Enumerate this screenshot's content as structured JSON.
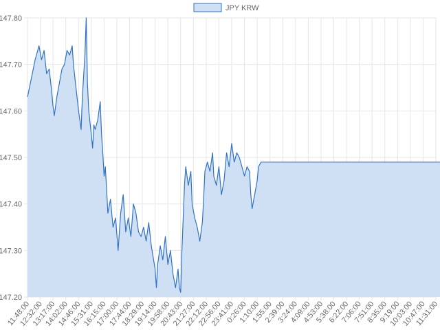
{
  "chart_data": {
    "type": "area",
    "title": "",
    "xlabel": "",
    "ylabel": "",
    "legend_position": "top-center",
    "grid": true,
    "ylim": [
      147.2,
      147.8
    ],
    "y_ticks": [
      "147.20",
      "147.30",
      "147.40",
      "147.50",
      "147.60",
      "147.70",
      "147.80"
    ],
    "x_ticks": [
      "11:48:00",
      "12:32:00",
      "13:17:00",
      "14:02:00",
      "14:46:00",
      "15:31:00",
      "16:15:00",
      "17:00:00",
      "17:44:00",
      "18:29:00",
      "19:14:00",
      "19:58:00",
      "20:43:00",
      "21:27:00",
      "22:12:00",
      "22:56:00",
      "23:41:00",
      "0:26:00",
      "1:10:00",
      "1:55:00",
      "2:39:00",
      "3:24:00",
      "4:09:00",
      "4:53:00",
      "5:38:00",
      "6:22:00",
      "7:06:00",
      "7:51:00",
      "8:35:00",
      "9:19:00",
      "10:03:00",
      "10:47:00",
      "11:31:00"
    ],
    "series": [
      {
        "name": "JPY KRW",
        "color": "#2f72c4",
        "fill": "#cfe0f5",
        "points": [
          [
            0,
            147.63
          ],
          [
            0.3,
            147.67
          ],
          [
            0.6,
            147.71
          ],
          [
            0.9,
            147.74
          ],
          [
            1.1,
            147.71
          ],
          [
            1.3,
            147.73
          ],
          [
            1.5,
            147.68
          ],
          [
            1.7,
            147.69
          ],
          [
            1.9,
            147.64
          ],
          [
            2.0,
            147.61
          ],
          [
            2.1,
            147.59
          ],
          [
            2.3,
            147.63
          ],
          [
            2.5,
            147.66
          ],
          [
            2.7,
            147.69
          ],
          [
            2.9,
            147.7
          ],
          [
            3.1,
            147.73
          ],
          [
            3.3,
            147.72
          ],
          [
            3.5,
            147.74
          ],
          [
            3.6,
            147.7
          ],
          [
            3.8,
            147.65
          ],
          [
            4.0,
            147.6
          ],
          [
            4.2,
            147.56
          ],
          [
            4.3,
            147.63
          ],
          [
            4.5,
            147.72
          ],
          [
            4.6,
            147.8
          ],
          [
            4.7,
            147.66
          ],
          [
            4.8,
            147.6
          ],
          [
            5.0,
            147.55
          ],
          [
            5.1,
            147.52
          ],
          [
            5.2,
            147.57
          ],
          [
            5.3,
            147.56
          ],
          [
            5.5,
            147.58
          ],
          [
            5.7,
            147.62
          ],
          [
            5.8,
            147.55
          ],
          [
            5.9,
            147.51
          ],
          [
            6.0,
            147.46
          ],
          [
            6.1,
            147.48
          ],
          [
            6.2,
            147.43
          ],
          [
            6.3,
            147.38
          ],
          [
            6.5,
            147.41
          ],
          [
            6.7,
            147.35
          ],
          [
            6.9,
            147.37
          ],
          [
            7.1,
            147.3
          ],
          [
            7.3,
            147.38
          ],
          [
            7.5,
            147.42
          ],
          [
            7.7,
            147.34
          ],
          [
            7.9,
            147.37
          ],
          [
            8.1,
            147.33
          ],
          [
            8.3,
            147.4
          ],
          [
            8.5,
            147.38
          ],
          [
            8.7,
            147.34
          ],
          [
            8.9,
            147.33
          ],
          [
            9.1,
            147.35
          ],
          [
            9.3,
            147.32
          ],
          [
            9.5,
            147.36
          ],
          [
            9.7,
            147.31
          ],
          [
            10.0,
            147.26
          ],
          [
            10.1,
            147.22
          ],
          [
            10.2,
            147.27
          ],
          [
            10.4,
            147.31
          ],
          [
            10.6,
            147.28
          ],
          [
            10.8,
            147.33
          ],
          [
            11.0,
            147.27
          ],
          [
            11.2,
            147.3
          ],
          [
            11.4,
            147.25
          ],
          [
            11.6,
            147.22
          ],
          [
            11.8,
            147.26
          ],
          [
            11.9,
            147.22
          ],
          [
            12.0,
            147.21
          ],
          [
            12.1,
            147.3
          ],
          [
            12.2,
            147.37
          ],
          [
            12.3,
            147.44
          ],
          [
            12.4,
            147.48
          ],
          [
            12.6,
            147.44
          ],
          [
            12.8,
            147.47
          ],
          [
            12.9,
            147.4
          ],
          [
            13.1,
            147.37
          ],
          [
            13.3,
            147.35
          ],
          [
            13.5,
            147.32
          ],
          [
            13.7,
            147.36
          ],
          [
            13.8,
            147.41
          ],
          [
            13.9,
            147.47
          ],
          [
            14.1,
            147.49
          ],
          [
            14.3,
            147.47
          ],
          [
            14.5,
            147.51
          ],
          [
            14.6,
            147.46
          ],
          [
            14.8,
            147.44
          ],
          [
            15.0,
            147.48
          ],
          [
            15.2,
            147.42
          ],
          [
            15.4,
            147.45
          ],
          [
            15.6,
            147.51
          ],
          [
            15.8,
            147.48
          ],
          [
            16.0,
            147.53
          ],
          [
            16.2,
            147.49
          ],
          [
            16.4,
            147.51
          ],
          [
            16.6,
            147.5
          ],
          [
            16.8,
            147.48
          ],
          [
            17.0,
            147.46
          ],
          [
            17.2,
            147.48
          ],
          [
            17.4,
            147.47
          ],
          [
            17.5,
            147.42
          ],
          [
            17.6,
            147.39
          ],
          [
            17.8,
            147.42
          ],
          [
            18.0,
            147.45
          ],
          [
            18.1,
            147.48
          ],
          [
            18.3,
            147.49
          ],
          [
            33.0,
            147.49
          ]
        ]
      }
    ]
  }
}
